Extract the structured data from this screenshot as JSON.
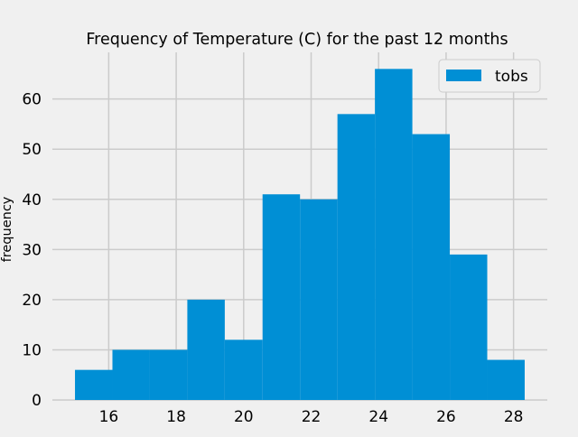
{
  "chart_data": {
    "type": "bar",
    "title": "Frequency of Temperature (C) for the past 12 months",
    "xlabel": "",
    "ylabel": "frequency",
    "bin_edges": [
      15.0,
      16.11,
      17.22,
      18.33,
      19.44,
      20.56,
      21.67,
      22.78,
      23.89,
      25.0,
      26.11,
      27.22,
      28.33
    ],
    "series": [
      {
        "name": "tobs",
        "values": [
          6,
          10,
          10,
          20,
          12,
          41,
          40,
          57,
          66,
          53,
          29,
          8
        ]
      }
    ],
    "xlim": [
      14.33,
      29.0
    ],
    "ylim": [
      0,
      69.3
    ],
    "xticks": [
      16,
      18,
      20,
      22,
      24,
      26,
      28
    ],
    "yticks": [
      0,
      10,
      20,
      30,
      40,
      50,
      60
    ],
    "grid": true,
    "legend_position": "top-right",
    "colors": {
      "bar": "#008fd5",
      "background": "#f0f0f0",
      "grid": "#cbcbcb"
    }
  }
}
